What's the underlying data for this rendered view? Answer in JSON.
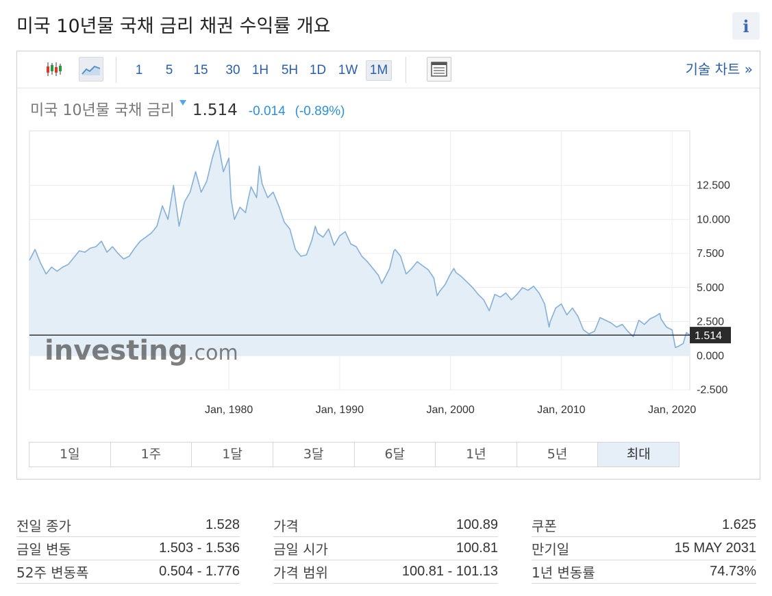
{
  "page": {
    "title": "미국 10년물 국채 금리  채권 수익률 개요",
    "info_label": "i"
  },
  "toolbar": {
    "candle_icon": "candlestick-icon",
    "line_icon": "line-chart-icon",
    "layout_icon": "layout-icon",
    "intervals": [
      {
        "label": "1",
        "active": false
      },
      {
        "label": "5",
        "active": false
      },
      {
        "label": "15",
        "active": false
      },
      {
        "label": "30",
        "active": false
      },
      {
        "label": "1H",
        "active": false
      },
      {
        "label": "5H",
        "active": false
      },
      {
        "label": "1D",
        "active": false
      },
      {
        "label": "1W",
        "active": false
      },
      {
        "label": "1M",
        "active": true
      }
    ],
    "tech_chart_label": "기술 차트 »"
  },
  "instrument": {
    "name": "미국 10년물 국채 금리",
    "price": "1.514",
    "change": "-0.014",
    "change_pct": "(-0.89%)",
    "down_color": "#2f8fd6"
  },
  "chart_data": {
    "type": "area",
    "x_tick_labels": [
      "Jan, 1980",
      "Jan, 1990",
      "Jan, 2000",
      "Jan, 2010",
      "Jan, 2020"
    ],
    "x_tick_values": [
      1980,
      1990,
      2000,
      2010,
      2020
    ],
    "xlim": [
      1962.0,
      2021.6
    ],
    "y_tick_labels": [
      "12.500",
      "10.000",
      "7.500",
      "5.000",
      "2.500",
      "0.000",
      "-2.500"
    ],
    "y_tick_values": [
      12.5,
      10.0,
      7.5,
      5.0,
      2.5,
      0.0,
      -2.5
    ],
    "ylim": [
      -2.5,
      16.5
    ],
    "current_value": 1.514,
    "current_label": "1.514",
    "watermark": "Investing.com",
    "line_color": "#86afd6",
    "fill_color": "#e3eef6",
    "grid": true,
    "series": [
      {
        "x": [
          1962.0,
          1962.5,
          1963.0,
          1963.5,
          1964.0,
          1964.5,
          1965.0,
          1965.5,
          1966.0,
          1966.5,
          1967.0,
          1967.5,
          1968.0,
          1968.5,
          1969.0,
          1969.5,
          1970.0,
          1970.5,
          1971.0,
          1971.5,
          1972.0,
          1972.5,
          1973.0,
          1973.5,
          1974.0,
          1974.5,
          1975.0,
          1975.5,
          1976.0,
          1976.5,
          1977.0,
          1977.5,
          1978.0,
          1978.5,
          1979.0,
          1979.5,
          1980.0,
          1980.2,
          1980.5,
          1981.0,
          1981.5,
          1981.75,
          1982.0,
          1982.5,
          1982.75,
          1983.0,
          1983.5,
          1984.0,
          1984.5,
          1985.0,
          1985.5,
          1986.0,
          1986.5,
          1987.0,
          1987.5,
          1987.8,
          1988.0,
          1988.5,
          1989.0,
          1989.5,
          1990.0,
          1990.5,
          1991.0,
          1991.5,
          1992.0,
          1992.5,
          1993.0,
          1993.5,
          1993.8,
          1994.0,
          1994.5,
          1994.9,
          1995.0,
          1995.5,
          1996.0,
          1996.5,
          1997.0,
          1997.5,
          1998.0,
          1998.5,
          1998.8,
          1999.0,
          1999.5,
          2000.0,
          2000.3,
          2000.5,
          2001.0,
          2001.5,
          2002.0,
          2002.5,
          2003.0,
          2003.5,
          2004.0,
          2004.5,
          2005.0,
          2005.5,
          2006.0,
          2006.5,
          2007.0,
          2007.5,
          2008.0,
          2008.5,
          2008.9,
          2009.0,
          2009.5,
          2010.0,
          2010.5,
          2011.0,
          2011.5,
          2012.0,
          2012.5,
          2013.0,
          2013.5,
          2014.0,
          2014.5,
          2015.0,
          2015.5,
          2016.0,
          2016.5,
          2017.0,
          2017.5,
          2018.0,
          2018.5,
          2018.9,
          2019.0,
          2019.5,
          2020.0,
          2020.3,
          2020.6,
          2021.0,
          2021.3,
          2021.6
        ],
        "values": [
          7.0,
          7.8,
          6.8,
          6.0,
          6.5,
          6.2,
          6.5,
          6.7,
          7.2,
          7.7,
          7.6,
          7.9,
          8.0,
          8.4,
          7.6,
          8.0,
          7.5,
          7.1,
          7.3,
          7.9,
          8.4,
          8.7,
          9.0,
          9.5,
          11.0,
          10.0,
          12.5,
          9.5,
          11.3,
          12.0,
          13.5,
          12.0,
          12.8,
          14.5,
          15.8,
          13.5,
          14.5,
          11.5,
          10.0,
          10.9,
          10.5,
          11.5,
          12.4,
          11.6,
          13.9,
          12.6,
          11.6,
          12.0,
          11.0,
          9.8,
          9.3,
          7.8,
          7.3,
          7.4,
          8.5,
          9.5,
          9.0,
          8.7,
          9.3,
          8.1,
          8.8,
          9.1,
          8.2,
          8.0,
          7.3,
          6.9,
          6.4,
          5.9,
          5.3,
          5.6,
          6.4,
          7.7,
          7.8,
          7.3,
          6.0,
          6.4,
          6.9,
          6.6,
          6.3,
          5.7,
          4.4,
          4.7,
          5.2,
          6.0,
          6.4,
          6.1,
          5.8,
          5.4,
          5.0,
          4.5,
          4.1,
          3.3,
          4.5,
          4.3,
          4.6,
          4.1,
          4.5,
          5.0,
          4.8,
          5.1,
          4.6,
          3.8,
          2.1,
          2.5,
          3.5,
          3.8,
          3.0,
          3.5,
          2.9,
          1.9,
          1.6,
          1.8,
          2.8,
          2.6,
          2.4,
          2.1,
          2.3,
          1.8,
          1.4,
          2.6,
          2.3,
          2.7,
          2.9,
          3.1,
          2.7,
          2.1,
          1.9,
          0.6,
          0.7,
          0.9,
          1.7,
          1.5
        ]
      }
    ]
  },
  "range_buttons": [
    {
      "label": "1일",
      "active": false
    },
    {
      "label": "1주",
      "active": false
    },
    {
      "label": "1달",
      "active": false
    },
    {
      "label": "3달",
      "active": false
    },
    {
      "label": "6달",
      "active": false
    },
    {
      "label": "1년",
      "active": false
    },
    {
      "label": "5년",
      "active": false
    },
    {
      "label": "최대",
      "active": true
    }
  ],
  "stats": {
    "col1": [
      {
        "label": "전일 종가",
        "value": "1.528"
      },
      {
        "label": "금일 변동",
        "value": "1.503 - 1.536"
      },
      {
        "label": "52주 변동폭",
        "value": "0.504 - 1.776"
      }
    ],
    "col2": [
      {
        "label": "가격",
        "value": "100.89"
      },
      {
        "label": "금일 시가",
        "value": "100.81"
      },
      {
        "label": "가격 범위",
        "value": "100.81 - 101.13"
      }
    ],
    "col3": [
      {
        "label": "쿠폰",
        "value": "1.625"
      },
      {
        "label": "만기일",
        "value": "15 MAY 2031"
      },
      {
        "label": "1년 변동률",
        "value": "74.73%"
      }
    ]
  }
}
